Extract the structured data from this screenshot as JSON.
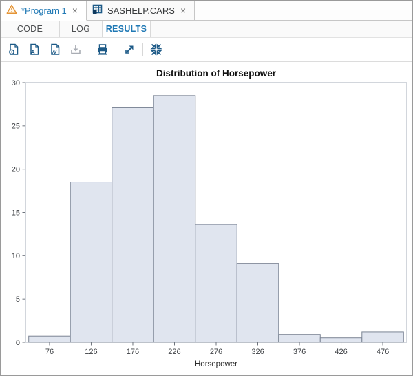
{
  "doc_tabs": [
    {
      "label": "*Program 1",
      "icon": "warning-icon",
      "close_glyph": "×",
      "state": "active"
    },
    {
      "label": "SASHELP.CARS",
      "icon": "table-icon",
      "close_glyph": "×",
      "state": "inactive"
    }
  ],
  "view_tabs": [
    {
      "label": "CODE"
    },
    {
      "label": "LOG"
    },
    {
      "label": "RESULTS"
    }
  ],
  "active_view_tab": "RESULTS",
  "toolbar": {
    "buttons": [
      "download-results-html",
      "download-results-pdf",
      "download-results-rtf",
      "download",
      "print",
      "open-in-new-window",
      "collapse-results"
    ],
    "disabled_buttons": [
      "download"
    ]
  },
  "colors": {
    "accent_blue": "#2079b5",
    "icon_navy": "#1d5a87",
    "disabled_gray": "#a9adb4",
    "warning_orange": "#e49436",
    "bar_fill": "#e0e5ef",
    "bar_stroke": "#7b8494",
    "frame_gray": "#a6adb8",
    "tick_text": "#3a3d41"
  },
  "chart_data": {
    "type": "bar",
    "subtype": "histogram",
    "title": "Distribution of Horsepower",
    "xlabel": "Horsepower",
    "ylabel": "",
    "categories": [
      "76",
      "126",
      "176",
      "226",
      "276",
      "326",
      "376",
      "426",
      "476"
    ],
    "values": [
      0.7,
      18.5,
      27.1,
      28.5,
      13.6,
      9.1,
      0.9,
      0.5,
      1.2
    ],
    "ylim": [
      0,
      30
    ],
    "yticks": [
      0,
      5,
      10,
      15,
      20,
      25,
      30
    ],
    "grid": "off",
    "legend": "none",
    "bar_fill": "#e0e5ef",
    "bar_stroke": "#7b8494"
  }
}
